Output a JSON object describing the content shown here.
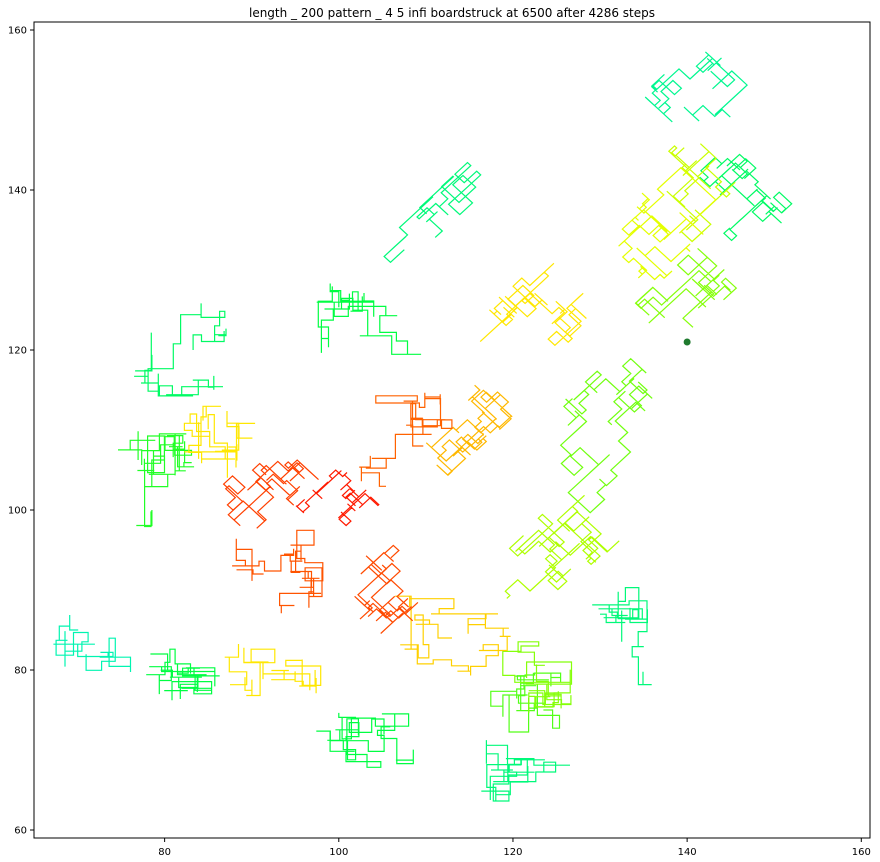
{
  "chart_data": {
    "type": "line",
    "title": "length _ 200 pattern _ 4 5 infi boardstruck at 6500 after 4286 steps",
    "xlabel": "",
    "ylabel": "",
    "xlim": [
      65,
      161
    ],
    "ylim": [
      59,
      161
    ],
    "xticks": [
      80,
      100,
      120,
      140,
      160
    ],
    "yticks": [
      60,
      80,
      100,
      120,
      140,
      160
    ],
    "grid": false,
    "colormap": [
      "#ff1a00",
      "#ff6a00",
      "#ffb000",
      "#ffff00",
      "#a6ff00",
      "#00ff30",
      "#00f0e8"
    ],
    "marker": {
      "x": 140,
      "y": 121,
      "color": "#1f7a2e"
    },
    "regions": [
      {
        "cx": 100,
        "cy": 100,
        "rx": 4,
        "ry": 4,
        "rot": 45,
        "level": 0.0,
        "n": 60
      },
      {
        "cx": 93,
        "cy": 105,
        "rx": 8,
        "ry": 6,
        "rot": 45,
        "level": 0.08,
        "n": 90
      },
      {
        "cx": 107,
        "cy": 93,
        "rx": 8,
        "ry": 6,
        "rot": 45,
        "level": 0.1,
        "n": 90
      },
      {
        "cx": 92,
        "cy": 92,
        "rx": 7,
        "ry": 7,
        "rot": 0,
        "level": 0.12,
        "n": 90
      },
      {
        "cx": 108,
        "cy": 108,
        "rx": 7,
        "ry": 7,
        "rot": 0,
        "level": 0.15,
        "n": 90
      },
      {
        "cx": 115,
        "cy": 115,
        "rx": 12,
        "ry": 6,
        "rot": 45,
        "level": 0.35,
        "n": 110
      },
      {
        "cx": 125,
        "cy": 125,
        "rx": 10,
        "ry": 6,
        "rot": 45,
        "level": 0.45,
        "n": 100
      },
      {
        "cx": 135,
        "cy": 135,
        "rx": 9,
        "ry": 6,
        "rot": 45,
        "level": 0.55,
        "n": 90
      },
      {
        "cx": 141,
        "cy": 141,
        "rx": 6,
        "ry": 5,
        "rot": 45,
        "level": 0.6,
        "n": 70
      },
      {
        "cx": 90,
        "cy": 82,
        "rx": 8,
        "ry": 6,
        "rot": 0,
        "level": 0.45,
        "n": 90
      },
      {
        "cx": 85,
        "cy": 110,
        "rx": 6,
        "ry": 8,
        "rot": 0,
        "level": 0.45,
        "n": 90
      },
      {
        "cx": 112,
        "cy": 84,
        "rx": 8,
        "ry": 6,
        "rot": 0,
        "level": 0.4,
        "n": 90
      },
      {
        "cx": 121,
        "cy": 79,
        "rx": 6,
        "ry": 5,
        "rot": 0,
        "level": 0.7,
        "n": 90
      },
      {
        "cx": 125,
        "cy": 75,
        "rx": 8,
        "ry": 5,
        "rot": 0,
        "level": 0.75,
        "n": 80
      },
      {
        "cx": 120,
        "cy": 98,
        "rx": 10,
        "ry": 10,
        "rot": 45,
        "level": 0.65,
        "n": 110
      },
      {
        "cx": 132,
        "cy": 110,
        "rx": 10,
        "ry": 8,
        "rot": 45,
        "level": 0.72,
        "n": 110
      },
      {
        "cx": 143,
        "cy": 127,
        "rx": 8,
        "ry": 6,
        "rot": 45,
        "level": 0.7,
        "n": 90
      },
      {
        "cx": 80,
        "cy": 82,
        "rx": 8,
        "ry": 6,
        "rot": 0,
        "level": 0.85,
        "n": 100
      },
      {
        "cx": 78,
        "cy": 100,
        "rx": 6,
        "ry": 10,
        "rot": 0,
        "level": 0.8,
        "n": 100
      },
      {
        "cx": 82,
        "cy": 120,
        "rx": 6,
        "ry": 6,
        "rot": 0,
        "level": 0.88,
        "n": 90
      },
      {
        "cx": 100,
        "cy": 124,
        "rx": 10,
        "ry": 5,
        "rot": 0,
        "level": 0.85,
        "n": 90
      },
      {
        "cx": 100,
        "cy": 73,
        "rx": 12,
        "ry": 6,
        "rot": 0,
        "level": 0.85,
        "n": 100
      },
      {
        "cx": 120,
        "cy": 68,
        "rx": 10,
        "ry": 5,
        "rot": 0,
        "level": 0.9,
        "n": 90
      },
      {
        "cx": 150,
        "cy": 138,
        "rx": 8,
        "ry": 10,
        "rot": 45,
        "level": 0.88,
        "n": 90
      },
      {
        "cx": 140,
        "cy": 150,
        "rx": 8,
        "ry": 5,
        "rot": 45,
        "level": 0.92,
        "n": 70
      },
      {
        "cx": 72,
        "cy": 85,
        "rx": 5,
        "ry": 6,
        "rot": 0,
        "level": 0.95,
        "n": 60
      },
      {
        "cx": 130,
        "cy": 85,
        "rx": 6,
        "ry": 8,
        "rot": 0,
        "level": 0.9,
        "n": 80
      },
      {
        "cx": 112,
        "cy": 135,
        "rx": 8,
        "ry": 4,
        "rot": 45,
        "level": 0.9,
        "n": 70
      }
    ]
  }
}
